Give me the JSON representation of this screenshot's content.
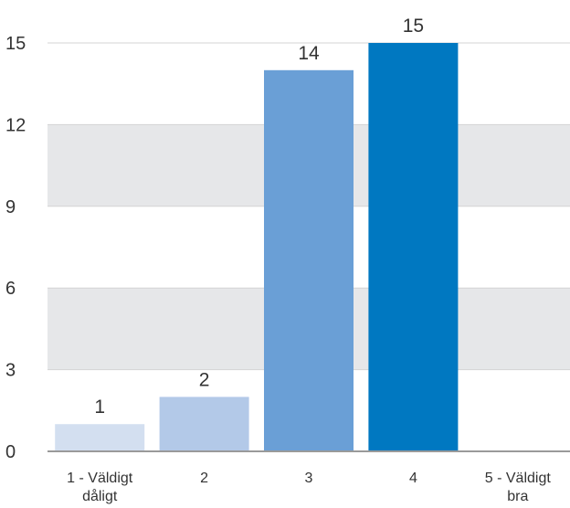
{
  "chart_data": {
    "type": "bar",
    "title": "",
    "xlabel": "",
    "ylabel": "",
    "categories": [
      [
        "1 - Väldigt",
        "dåligt"
      ],
      [
        "2"
      ],
      [
        "3"
      ],
      [
        "4"
      ],
      [
        "5 - Väldigt",
        "bra"
      ]
    ],
    "values": [
      1,
      2,
      14,
      15,
      0
    ],
    "data_labels": [
      "1",
      "2",
      "14",
      "15",
      ""
    ],
    "ylim": [
      0,
      15
    ],
    "yticks": [
      0,
      3,
      6,
      9,
      12,
      15
    ],
    "ytick_labels": [
      "0",
      "3",
      "6",
      "9",
      "12",
      "15"
    ],
    "grid": "alternating horizontal bands",
    "legend": "none",
    "colors": {
      "bars": [
        "#d3dff0",
        "#b3c9e8",
        "#6a9fd6",
        "#0078c1",
        "#0078c1"
      ],
      "band": "#e6e7e9",
      "gridline": "#d4d4d4",
      "axis": "#9a9a9a",
      "text": "#333333"
    }
  }
}
